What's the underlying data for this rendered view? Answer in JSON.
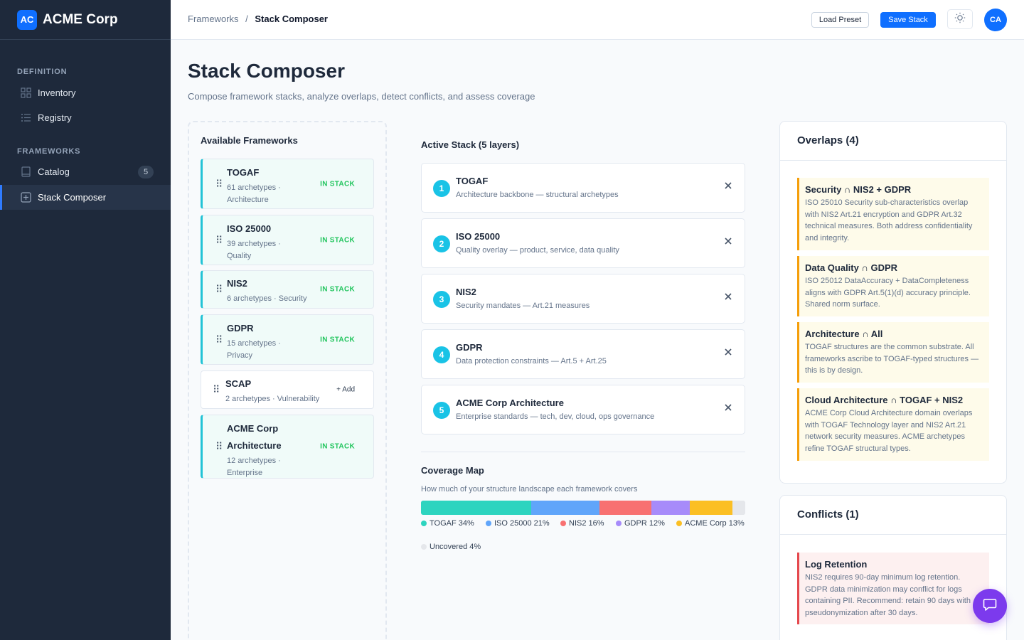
{
  "brand": {
    "logo": "AC",
    "name": "ACME Corp"
  },
  "sidebar": {
    "sections": [
      {
        "label": "DEFINITION"
      },
      {
        "label": "FRAMEWORKS"
      }
    ],
    "items": [
      {
        "label": "Inventory",
        "icon": "grid-icon"
      },
      {
        "label": "Registry",
        "icon": "list-icon"
      },
      {
        "label": "Catalog",
        "icon": "book-icon",
        "badge": "5"
      },
      {
        "label": "Stack Composer",
        "icon": "plus-square-icon",
        "active": true
      }
    ]
  },
  "topbar": {
    "breadcrumb_root": "Frameworks",
    "breadcrumb_sep": "/",
    "breadcrumb_current": "Stack Composer",
    "load_preset": "Load Preset",
    "save_stack": "Save Stack",
    "avatar": "CA"
  },
  "page": {
    "title": "Stack Composer",
    "subtitle": "Compose framework stacks, analyze overlaps, detect conflicts, and assess coverage"
  },
  "available": {
    "title": "Available Frameworks",
    "items": [
      {
        "name": "TOGAF",
        "meta1": "61 archetypes ·",
        "meta2": "Architecture",
        "status": "IN STACK"
      },
      {
        "name": "ISO 25000",
        "meta1": "39 archetypes ·",
        "meta2": "Quality",
        "status": "IN STACK"
      },
      {
        "name": "NIS2",
        "meta1": "6 archetypes · Security",
        "meta2": "",
        "status": "IN STACK"
      },
      {
        "name": "GDPR",
        "meta1": "15 archetypes ·",
        "meta2": "Privacy",
        "status": "IN STACK"
      },
      {
        "name": "SCAP",
        "meta1": "2 archetypes · Vulnerability",
        "meta2": "",
        "status": "+ Add"
      },
      {
        "name1": "ACME Corp",
        "name2": "Architecture",
        "meta1": "12 archetypes ·",
        "meta2": "Enterprise",
        "status": "IN STACK"
      }
    ]
  },
  "stack": {
    "title": "Active Stack (5 layers)",
    "layers": [
      {
        "num": "1",
        "name": "TOGAF",
        "desc": "Architecture backbone — structural archetypes"
      },
      {
        "num": "2",
        "name": "ISO 25000",
        "desc": "Quality overlay — product, service, data quality"
      },
      {
        "num": "3",
        "name": "NIS2",
        "desc": "Security mandates — Art.21 measures"
      },
      {
        "num": "4",
        "name": "GDPR",
        "desc": "Data protection constraints — Art.5 + Art.25"
      },
      {
        "num": "5",
        "name": "ACME Corp Architecture",
        "desc": "Enterprise standards — tech, dev, cloud, ops governance"
      }
    ]
  },
  "coverage": {
    "title": "Coverage Map",
    "subtitle": "How much of your structure landscape each framework covers",
    "segments": [
      {
        "label": "TOGAF 34%",
        "value": 34,
        "color": "#2dd4bf"
      },
      {
        "label": "ISO 25000 21%",
        "value": 21,
        "color": "#60a5fa"
      },
      {
        "label": "NIS2 16%",
        "value": 16,
        "color": "#f87171"
      },
      {
        "label": "GDPR 12%",
        "value": 12,
        "color": "#a78bfa"
      },
      {
        "label": "ACME Corp 13%",
        "value": 13,
        "color": "#fbbf24"
      },
      {
        "label": "Uncovered 4%",
        "value": 4,
        "color": "#e5e7eb"
      }
    ]
  },
  "overlaps": {
    "title": "Overlaps (4)",
    "items": [
      {
        "title": "Security ∩ NIS2 + GDPR",
        "text": "ISO 25010 Security sub-characteristics overlap with NIS2 Art.21 encryption and GDPR Art.32 technical measures. Both address confidentiality and integrity."
      },
      {
        "title": "Data Quality ∩ GDPR",
        "text": "ISO 25012 DataAccuracy + DataCompleteness aligns with GDPR Art.5(1)(d) accuracy principle. Shared norm surface."
      },
      {
        "title": "Architecture ∩ All",
        "text": "TOGAF structures are the common substrate. All frameworks ascribe to TOGAF-typed structures — this is by design."
      },
      {
        "title": "Cloud Architecture ∩ TOGAF + NIS2",
        "text": "ACME Corp Cloud Architecture domain overlaps with TOGAF Technology layer and NIS2 Art.21 network security measures. ACME archetypes refine TOGAF structural types."
      }
    ]
  },
  "conflicts": {
    "title": "Conflicts (1)",
    "items": [
      {
        "title": "Log Retention",
        "text": "NIS2 requires 90-day minimum log retention. GDPR data minimization may conflict for logs containing PII. Recommend: retain 90 days with pseudonymization after 30 days."
      }
    ]
  }
}
